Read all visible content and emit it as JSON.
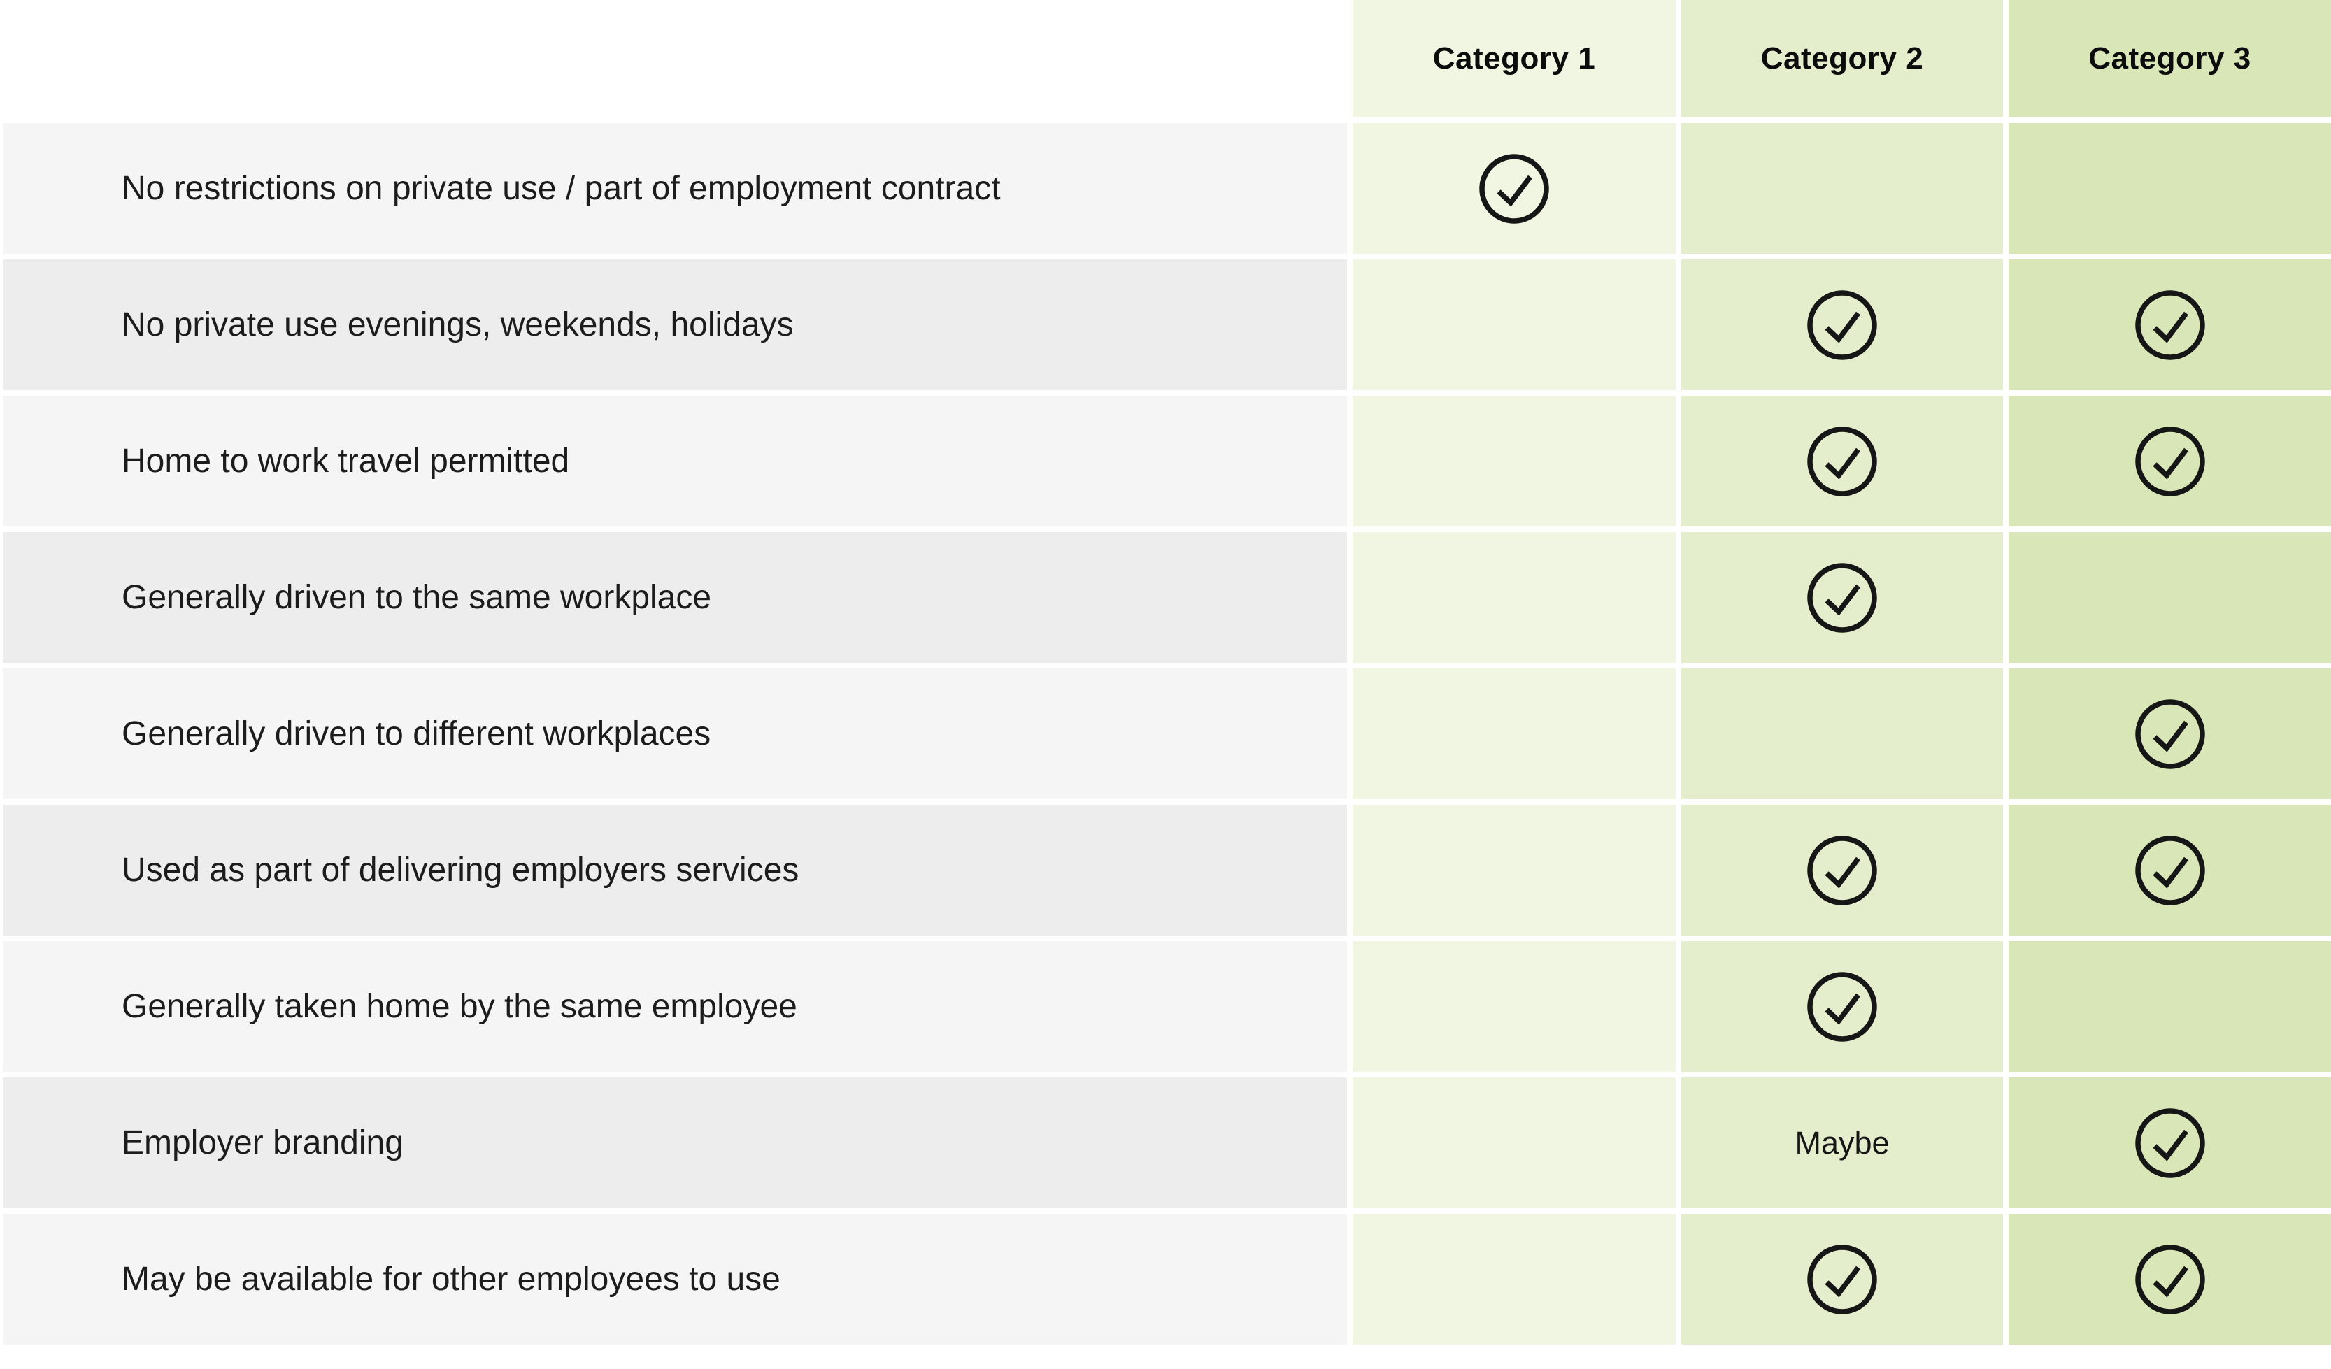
{
  "table": {
    "header": {
      "columns": [
        {
          "label": "Category 1",
          "color": "#f1f6e2"
        },
        {
          "label": "Category 2",
          "color": "#e4edcc"
        },
        {
          "label": "Category 3",
          "color": "#d9e6b8"
        }
      ]
    },
    "styles": {
      "row_bg_odd": "#f5f5f6",
      "row_bg_even": "#ededee",
      "check_color": "#161616",
      "label_color": "#1c1c1c",
      "header_text_color": "#0c0c0c"
    },
    "maybe_label": "Maybe",
    "rows": [
      {
        "label": "No restrictions on private use / part of employment contract",
        "values": [
          "check",
          "",
          ""
        ]
      },
      {
        "label": "No private use evenings, weekends, holidays",
        "values": [
          "",
          "check",
          "check"
        ]
      },
      {
        "label": "Home to work travel permitted",
        "values": [
          "",
          "check",
          "check"
        ]
      },
      {
        "label": "Generally driven to the same workplace",
        "values": [
          "",
          "check",
          ""
        ]
      },
      {
        "label": "Generally driven to different workplaces",
        "values": [
          "",
          "",
          "check"
        ]
      },
      {
        "label": "Used as part of delivering employers services",
        "values": [
          "",
          "check",
          "check"
        ]
      },
      {
        "label": "Generally taken home by the same employee",
        "values": [
          "",
          "check",
          ""
        ]
      },
      {
        "label": "Employer branding",
        "values": [
          "",
          "maybe",
          "check"
        ]
      },
      {
        "label": "May be available for other employees to use",
        "values": [
          "",
          "check",
          "check"
        ]
      }
    ]
  },
  "chart_data": {
    "type": "table",
    "columns": [
      "",
      "Category 1",
      "Category 2",
      "Category 3"
    ],
    "rows": [
      [
        "No restrictions on private use / part of employment contract",
        "✓",
        "",
        ""
      ],
      [
        "No private use evenings, weekends, holidays",
        "",
        "✓",
        "✓"
      ],
      [
        "Home to work travel permitted",
        "",
        "✓",
        "✓"
      ],
      [
        "Generally driven to the same workplace",
        "",
        "✓",
        ""
      ],
      [
        "Generally driven to different workplaces",
        "",
        "",
        "✓"
      ],
      [
        "Used as part of delivering employers services",
        "",
        "✓",
        "✓"
      ],
      [
        "Generally taken home by the same employee",
        "",
        "✓",
        ""
      ],
      [
        "Employer branding",
        "",
        "Maybe",
        "✓"
      ],
      [
        "May be available for other employees to use",
        "",
        "✓",
        "✓"
      ]
    ]
  }
}
